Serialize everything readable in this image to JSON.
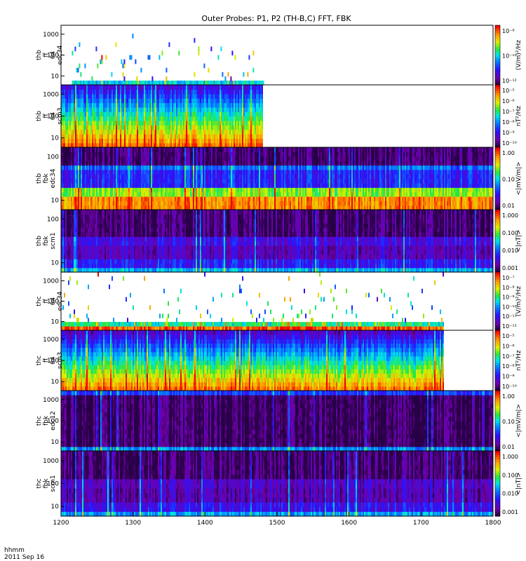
{
  "title": "Outer Probes: P1, P2 (TH-B,C) FFT, FBK",
  "footer": {
    "time_label": "hhmm",
    "date_label": "2011 Sep 16"
  },
  "x_axis": {
    "ticks": [
      "1200",
      "1300",
      "1400",
      "1500",
      "1600",
      "1700",
      "1800"
    ],
    "range": [
      1200,
      1800
    ]
  },
  "colors": {
    "background": "#ffffff",
    "nodata": "#ffffff",
    "axis": "#000000"
  },
  "panels": [
    {
      "probe": "thb",
      "instrument": "ff",
      "band": "64",
      "sensor": "edc34",
      "ylabel_lines": [
        "thb",
        "ff",
        "64",
        "edc34"
      ],
      "yticks": [
        "1000",
        "100",
        "10"
      ],
      "yscale": "log",
      "ylim": [
        8,
        4096
      ],
      "colorbar_ticks": [
        "10⁻⁸",
        "10⁻¹⁰",
        "10⁻¹²"
      ],
      "colorbar_label": "(V/m)²/Hz",
      "data_end": 1480
    },
    {
      "probe": "thb",
      "instrument": "ff",
      "band": "64",
      "sensor": "scm3",
      "ylabel_lines": [
        "thb",
        "ff",
        "64",
        "scm3"
      ],
      "yticks": [
        "1000",
        "100",
        "10"
      ],
      "yscale": "log",
      "ylim": [
        8,
        4096
      ],
      "colorbar_ticks": [
        "10⁻⁵",
        "10⁻⁶",
        "10⁻⁷",
        "10⁻⁸",
        "10⁻⁹",
        "10⁻¹⁰"
      ],
      "colorbar_label": "nT²/Hz",
      "data_end": 1480
    },
    {
      "probe": "thb",
      "instrument": "fbk",
      "band": "",
      "sensor": "edc34",
      "ylabel_lines": [
        "thb",
        "fbk",
        "edc34"
      ],
      "yticks": [
        "100",
        "10"
      ],
      "yscale": "log",
      "ylim": [
        2,
        2048
      ],
      "colorbar_ticks": [
        "1.00",
        "0.10",
        "0.01"
      ],
      "colorbar_label": "<|mV/m|>",
      "data_end": 1800
    },
    {
      "probe": "thb",
      "instrument": "fbk",
      "band": "",
      "sensor": "scm1",
      "ylabel_lines": [
        "thb",
        "fbk",
        "scm1"
      ],
      "yticks": [
        "100",
        "10"
      ],
      "yscale": "log",
      "ylim": [
        2,
        2048
      ],
      "colorbar_ticks": [
        "1.000",
        "0.100",
        "0.010",
        "0.001"
      ],
      "colorbar_label": "<|nT|>",
      "data_end": 1800
    },
    {
      "probe": "thc",
      "instrument": "ff",
      "band": "64",
      "sensor": "edc34",
      "ylabel_lines": [
        "thc",
        "ff",
        "64",
        "edc34"
      ],
      "yticks": [
        "1000",
        "100",
        "10"
      ],
      "yscale": "log",
      "ylim": [
        8,
        4096
      ],
      "colorbar_ticks": [
        "10⁻⁷",
        "10⁻⁸",
        "10⁻⁹",
        "10⁻¹⁰",
        "10⁻¹¹",
        "10⁻¹²"
      ],
      "colorbar_label": "(V/m)²/Hz",
      "data_end": 1730
    },
    {
      "probe": "thc",
      "instrument": "ff",
      "band": "64",
      "sensor": "scm3",
      "ylabel_lines": [
        "thc",
        "ff",
        "64",
        "scm3"
      ],
      "yticks": [
        "1000",
        "100",
        "10"
      ],
      "yscale": "log",
      "ylim": [
        8,
        4096
      ],
      "colorbar_ticks": [
        "10⁻⁵",
        "10⁻⁶",
        "10⁻⁷",
        "10⁻⁸",
        "10⁻⁹",
        "10⁻¹⁰"
      ],
      "colorbar_label": "nT²/Hz",
      "data_end": 1730
    },
    {
      "probe": "thc",
      "instrument": "fbk",
      "band": "",
      "sensor": "edc12",
      "ylabel_lines": [
        "thc",
        "fbk",
        "edc12"
      ],
      "yticks": [
        "1000",
        "100",
        "10"
      ],
      "yscale": "log",
      "ylim": [
        2,
        2048
      ],
      "colorbar_ticks": [
        "1.00",
        "0.10",
        "0.01"
      ],
      "colorbar_label": "<|mV/m|>",
      "data_end": 1800
    },
    {
      "probe": "thc",
      "instrument": "fbk",
      "band": "",
      "sensor": "scm1",
      "ylabel_lines": [
        "thc",
        "fbk",
        "scm1"
      ],
      "yticks": [
        "1000",
        "100",
        "10"
      ],
      "yscale": "log",
      "ylim": [
        2,
        2048
      ],
      "colorbar_ticks": [
        "1.000",
        "0.100",
        "0.010",
        "0.001"
      ],
      "colorbar_label": "<|nT|>",
      "data_end": 1800
    }
  ],
  "chart_data": {
    "type": "heatmap",
    "title": "Outer Probes: P1, P2 (TH-B,C) FFT, FBK",
    "xlabel": "",
    "x_ticks": [
      1200,
      1300,
      1400,
      1500,
      1600,
      1700,
      1800
    ],
    "xlim": [
      1200,
      1800
    ],
    "colormap": "rainbow (purple-blue-cyan-green-yellow-orange-red)",
    "series": [
      {
        "name": "thb ff 64 edc34",
        "yscale": "log",
        "coverage": [
          1215,
          1480
        ],
        "background_level": "blue-green in lowest bin, sparse colored vertical streaks"
      },
      {
        "name": "thb ff 64 scm3",
        "yscale": "log",
        "coverage": [
          1200,
          1480
        ],
        "background_level": "red/yellow at 10 Hz to blue/purple above 300 Hz"
      },
      {
        "name": "thb fbk edc34",
        "yscale": "log",
        "coverage": [
          1200,
          1800
        ],
        "background_level": "orange/red below 10 Hz, green 10-30, blue 30-100"
      },
      {
        "name": "thb fbk scm1",
        "yscale": "log",
        "coverage": [
          1200,
          1800
        ],
        "background_level": "dark purple, blue near 10 Hz"
      },
      {
        "name": "thc ff 64 edc34",
        "yscale": "log",
        "coverage": [
          1200,
          1730
        ],
        "background_level": "periodic colored blocks near 10 Hz, sparse above"
      },
      {
        "name": "thc ff 64 scm3",
        "yscale": "log",
        "coverage": [
          1200,
          1730
        ],
        "background_level": "red/yellow at 10 Hz to purple near 1000 Hz"
      },
      {
        "name": "thc fbk edc12",
        "yscale": "log",
        "coverage": [
          1200,
          1800
        ],
        "background_level": "black with blue band near 3 Hz"
      },
      {
        "name": "thc fbk scm1",
        "yscale": "log",
        "coverage": [
          1200,
          1800
        ],
        "background_level": "black/purple, blue near 10 Hz"
      }
    ]
  }
}
